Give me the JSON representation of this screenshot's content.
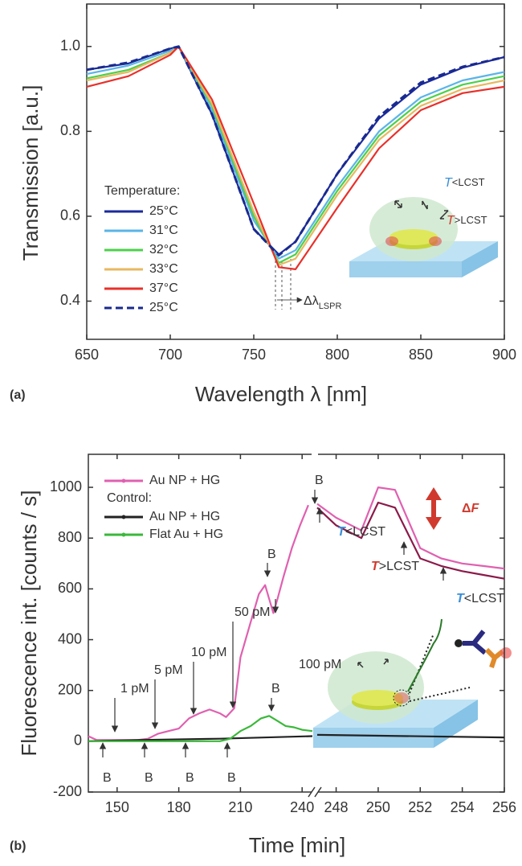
{
  "chart_data": [
    {
      "type": "line",
      "x_label": "Wavelength λ [nm]",
      "y_label": "Transmission [a.u.]",
      "xlim": [
        650,
        900
      ],
      "ylim": [
        0.31,
        1.1
      ],
      "xticks": [
        650,
        700,
        750,
        800,
        850,
        900
      ],
      "yticks": [
        0.4,
        0.6,
        0.8,
        {
          "value": 1,
          "label": "1.0"
        }
      ],
      "legend_heading": "Temperature:",
      "x": [
        650,
        675,
        700,
        705,
        725,
        750,
        765,
        775,
        800,
        825,
        850,
        875,
        900
      ],
      "series": [
        {
          "name": "25°C",
          "color": "#1a2a9e",
          "values": [
            0.945,
            0.96,
            0.995,
            1.0,
            0.84,
            0.57,
            0.51,
            0.54,
            0.7,
            0.83,
            0.91,
            0.95,
            0.975
          ]
        },
        {
          "name": "31°C",
          "color": "#5ab4e8",
          "values": [
            0.935,
            0.955,
            0.99,
            1.0,
            0.85,
            0.59,
            0.5,
            0.52,
            0.67,
            0.8,
            0.88,
            0.92,
            0.94
          ]
        },
        {
          "name": "32°C",
          "color": "#4cd04c",
          "values": [
            0.925,
            0.945,
            0.985,
            1.0,
            0.86,
            0.6,
            0.49,
            0.51,
            0.66,
            0.79,
            0.87,
            0.91,
            0.93
          ]
        },
        {
          "name": "33°C",
          "color": "#e8b860",
          "values": [
            0.92,
            0.94,
            0.985,
            1.0,
            0.865,
            0.61,
            0.485,
            0.5,
            0.65,
            0.78,
            0.86,
            0.9,
            0.92
          ]
        },
        {
          "name": "37°C",
          "color": "#e8302a",
          "values": [
            0.905,
            0.93,
            0.98,
            1.0,
            0.875,
            0.63,
            0.48,
            0.475,
            0.62,
            0.76,
            0.85,
            0.89,
            0.905
          ]
        },
        {
          "name": "25°C",
          "color": "#1a2a8e",
          "dash": true,
          "values": [
            0.945,
            0.962,
            0.995,
            1.0,
            0.84,
            0.57,
            0.508,
            0.54,
            0.7,
            0.835,
            0.915,
            0.952,
            0.975
          ]
        }
      ],
      "annotations": [
        {
          "parts": [
            "Δλ",
            "LSPR"
          ]
        },
        {
          "parts": [
            "T",
            "<LCST"
          ],
          "color": "#3a8fd6"
        },
        {
          "parts": [
            "T",
            ">LCST"
          ],
          "color": "#d03a2e"
        },
        {
          "text": "(a)"
        }
      ]
    },
    {
      "type": "line",
      "x_label": "Time [min]",
      "y_label": "Fluorescence int. [counts / s]",
      "xlim": [
        [
          136,
          245
        ],
        [
          247.1,
          256
        ]
      ],
      "ylim": [
        -200,
        1130
      ],
      "xticks": [
        [
          150,
          180,
          210,
          240
        ],
        [
          248,
          250,
          252,
          254,
          256
        ]
      ],
      "yticks": [
        -200,
        0,
        200,
        400,
        600,
        800,
        1000
      ],
      "legend_heading": "Control:",
      "series": [
        {
          "name": "Au NP + HG",
          "color": "#e060b0",
          "x": [
            136,
            140,
            150,
            160,
            165,
            170,
            175,
            180,
            185,
            190,
            195,
            200,
            203,
            207,
            210,
            215,
            219,
            222,
            224,
            226,
            228,
            231,
            235,
            239,
            243,
            247.1,
            248,
            249.2,
            250,
            250.8,
            252,
            253,
            254,
            255,
            256
          ],
          "values": [
            20,
            5,
            5,
            5,
            10,
            30,
            40,
            50,
            90,
            110,
            125,
            110,
            95,
            130,
            330,
            470,
            580,
            615,
            560,
            505,
            560,
            650,
            760,
            850,
            930,
            935,
            880,
            830,
            1000,
            990,
            760,
            720,
            700,
            690,
            680
          ]
        },
        {
          "color": "#8b1a4a",
          "x": [
            247.1,
            248,
            249.2,
            250,
            250.8,
            252,
            253,
            254,
            255,
            256
          ],
          "values": [
            920,
            850,
            800,
            940,
            920,
            720,
            690,
            670,
            655,
            640
          ]
        },
        {
          "name": "Au NP + HG",
          "color": "#222222",
          "x": [
            136,
            160,
            200,
            245,
            247.1,
            256
          ],
          "values": [
            0,
            5,
            10,
            20,
            25,
            15
          ]
        },
        {
          "name": "Flat Au + HG",
          "color": "#3ab83a",
          "x": [
            136,
            200,
            205,
            210,
            215,
            220,
            224,
            228,
            232,
            236,
            240,
            245
          ],
          "values": [
            0,
            0,
            10,
            40,
            60,
            90,
            100,
            80,
            60,
            55,
            45,
            40
          ]
        }
      ],
      "annotations": [
        {
          "text": "1 pM"
        },
        {
          "text": "5 pM"
        },
        {
          "text": "10 pM"
        },
        {
          "text": "50 pM"
        },
        {
          "text": "100 pM"
        },
        {
          "text": "B"
        },
        {
          "text": "B"
        },
        {
          "text": "B"
        },
        {
          "text": "B"
        },
        {
          "text": "B"
        },
        {
          "text": "B"
        },
        {
          "text": "B"
        },
        {
          "parts": [
            "T",
            "<LCST"
          ],
          "color": "#3a8fd6"
        },
        {
          "parts": [
            "T",
            ">LCST"
          ],
          "color": "#d03a2e"
        },
        {
          "parts": [
            "T",
            "<LCST"
          ],
          "color": "#3a8fd6"
        },
        {
          "parts": [
            "Δ",
            "F"
          ],
          "color": "#d03a2e"
        },
        {
          "text": "(b)"
        }
      ]
    }
  ]
}
